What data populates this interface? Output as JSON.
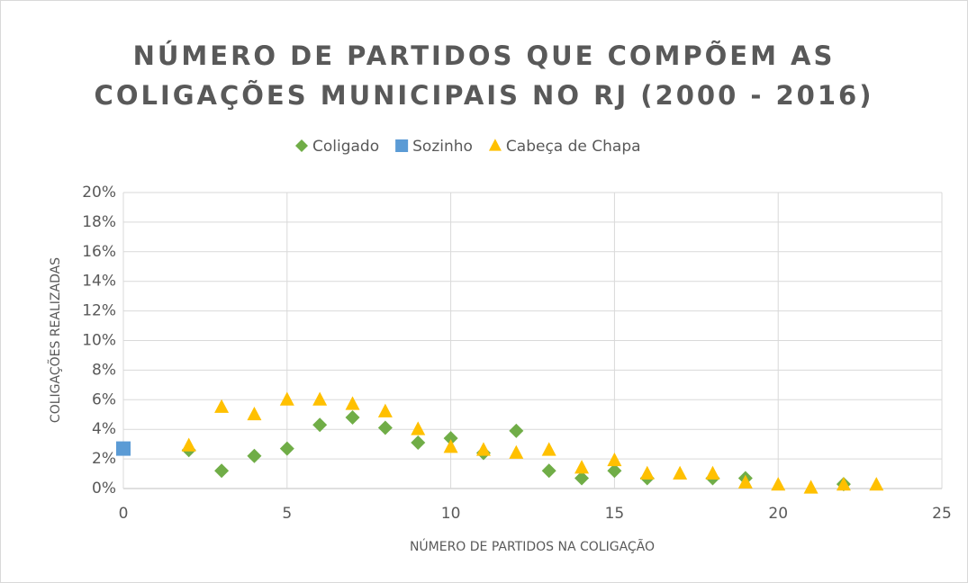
{
  "chart_data": {
    "type": "scatter",
    "title": "NÚMERO DE PARTIDOS QUE COMPÕEM AS COLIGAÇÕES MUNICIPAIS NO RJ (2000 - 2016)",
    "x_label": "NÚMERO DE PARTIDOS NA COLIGAÇÃO",
    "y_label": "COLIGAÇÕES REALIZADAS",
    "series": [
      {
        "name": "Coligado",
        "color": "#70ad47",
        "marker": "diamond",
        "x": [
          2,
          3,
          4,
          5,
          6,
          7,
          8,
          9,
          10,
          11,
          12,
          13,
          14,
          15,
          16,
          18,
          19,
          22
        ],
        "values": [
          2.6,
          1.2,
          2.2,
          2.7,
          4.3,
          4.8,
          4.1,
          3.1,
          3.4,
          2.4,
          3.9,
          1.2,
          0.7,
          1.2,
          0.7,
          0.7,
          0.7,
          0.3
        ]
      },
      {
        "name": "Sozinho",
        "color": "#5b9bd5",
        "marker": "square",
        "x": [
          0
        ],
        "values": [
          2.7
        ]
      },
      {
        "name": "Cabeça de Chapa",
        "color": "#ffc000",
        "marker": "triangle",
        "x": [
          2,
          3,
          4,
          5,
          6,
          7,
          8,
          9,
          10,
          11,
          12,
          13,
          14,
          15,
          16,
          17,
          18,
          19,
          20,
          21,
          22,
          23
        ],
        "values": [
          2.9,
          5.5,
          5.0,
          6.0,
          6.0,
          5.7,
          5.2,
          4.0,
          2.8,
          2.6,
          2.4,
          2.6,
          1.4,
          1.9,
          1.0,
          1.0,
          1.0,
          0.4,
          0.25,
          0.05,
          0.25,
          0.25
        ]
      }
    ],
    "xlim": [
      0,
      25
    ],
    "xticks": [
      0,
      5,
      10,
      15,
      20,
      25
    ],
    "ylim": [
      0,
      20
    ],
    "yticks": [
      {
        "value": 0,
        "label": "0%"
      },
      {
        "value": 2,
        "label": "2%"
      },
      {
        "value": 4,
        "label": "4%"
      },
      {
        "value": 6,
        "label": "6%"
      },
      {
        "value": 8,
        "label": "8%"
      },
      {
        "value": 10,
        "label": "10%"
      },
      {
        "value": 12,
        "label": "12%"
      },
      {
        "value": 14,
        "label": "14%"
      },
      {
        "value": 16,
        "label": "16%"
      },
      {
        "value": 18,
        "label": "18%"
      },
      {
        "value": 20,
        "label": "20%"
      }
    ],
    "grid": true,
    "legend": "top"
  }
}
